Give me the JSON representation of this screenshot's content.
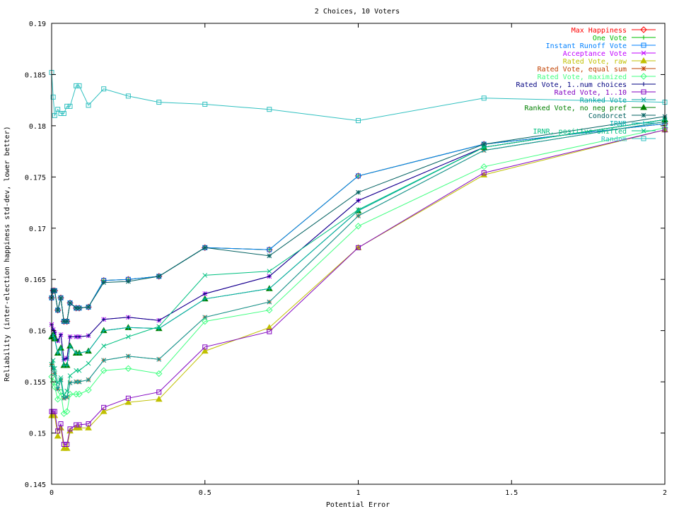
{
  "chart_data": {
    "type": "line",
    "title": "2 Choices, 10 Voters",
    "xlabel": "Potential Error",
    "ylabel": "Reliability (inter-election happiness std-dev, lower better)",
    "xlim": [
      0,
      2
    ],
    "ylim": [
      0.145,
      0.19
    ],
    "xticks": [
      0,
      0.5,
      1,
      1.5,
      2
    ],
    "xtick_labels": [
      "0",
      "0.5",
      "1",
      "1.5",
      "2"
    ],
    "yticks": [
      0.145,
      0.15,
      0.155,
      0.16,
      0.165,
      0.17,
      0.175,
      0.18,
      0.185,
      0.19
    ],
    "ytick_labels": [
      "0.145",
      "0.15",
      "0.155",
      "0.16",
      "0.165",
      "0.17",
      "0.175",
      "0.18",
      "0.185",
      "0.19"
    ],
    "grid": false,
    "legend_position": "top-right",
    "x": [
      0,
      0.005,
      0.01,
      0.02,
      0.03,
      0.04,
      0.05,
      0.06,
      0.08,
      0.09,
      0.12,
      0.17,
      0.25,
      0.35,
      0.5,
      0.71,
      1.0,
      1.41,
      2.0
    ],
    "series": [
      {
        "name": "Max Happiness",
        "color": "#ff0000",
        "marker": "diamond",
        "values": [
          0.1632,
          0.1639,
          0.1639,
          0.162,
          0.1632,
          0.1609,
          0.1609,
          0.1627,
          0.1622,
          0.1622,
          0.1623,
          0.1649,
          0.165,
          0.1653,
          0.1681,
          0.1679,
          0.1751,
          0.1782,
          0.1802
        ]
      },
      {
        "name": "One Vote",
        "color": "#00c000",
        "marker": "plus",
        "values": [
          0.1632,
          0.1639,
          0.1639,
          0.162,
          0.1632,
          0.1609,
          0.1609,
          0.1627,
          0.1622,
          0.1622,
          0.1623,
          0.1649,
          0.165,
          0.1653,
          0.1681,
          0.1679,
          0.1751,
          0.1782,
          0.1802
        ]
      },
      {
        "name": "Instant Runoff Vote",
        "color": "#0080ff",
        "marker": "square",
        "values": [
          0.1632,
          0.1639,
          0.1639,
          0.162,
          0.1632,
          0.1609,
          0.1609,
          0.1627,
          0.1622,
          0.1622,
          0.1623,
          0.1649,
          0.165,
          0.1653,
          0.1681,
          0.1679,
          0.1751,
          0.1782,
          0.1802
        ]
      },
      {
        "name": "Acceptance Vote",
        "color": "#c000ff",
        "marker": "x",
        "values": [
          0.1606,
          0.1601,
          0.1598,
          0.159,
          0.1596,
          0.1572,
          0.1573,
          0.1594,
          0.1594,
          0.1594,
          0.1595,
          0.1611,
          0.1613,
          0.161,
          0.1636,
          0.1653,
          0.1727,
          0.1779,
          0.1806
        ]
      },
      {
        "name": "Rated Vote, raw",
        "color": "#c0c000",
        "marker": "triangle",
        "values": [
          0.1517,
          0.1517,
          0.1517,
          0.1497,
          0.1505,
          0.1485,
          0.1485,
          0.1502,
          0.1505,
          0.1505,
          0.1505,
          0.1521,
          0.153,
          0.1533,
          0.158,
          0.1603,
          0.1681,
          0.1752,
          0.1796
        ]
      },
      {
        "name": "Rated Vote, equal sum",
        "color": "#c04000",
        "marker": "star",
        "values": [
          0.1567,
          0.1563,
          0.1558,
          0.1543,
          0.1552,
          0.1534,
          0.1535,
          0.1549,
          0.155,
          0.155,
          0.1552,
          0.1571,
          0.1575,
          0.1572,
          0.1613,
          0.1628,
          0.1712,
          0.1776,
          0.1804
        ]
      },
      {
        "name": "Rated Vote, maximized",
        "color": "#40ff80",
        "marker": "diamond",
        "values": [
          0.1555,
          0.155,
          0.1545,
          0.1533,
          0.154,
          0.1519,
          0.1521,
          0.1538,
          0.1538,
          0.1538,
          0.1542,
          0.1561,
          0.1563,
          0.1558,
          0.1609,
          0.162,
          0.1702,
          0.176,
          0.1798
        ]
      },
      {
        "name": "Rated Vote, 1..num choices",
        "color": "#000080",
        "marker": "plus",
        "values": [
          0.1606,
          0.1601,
          0.1598,
          0.159,
          0.1596,
          0.1572,
          0.1573,
          0.1594,
          0.1594,
          0.1594,
          0.1595,
          0.1611,
          0.1613,
          0.161,
          0.1636,
          0.1653,
          0.1727,
          0.1779,
          0.1806
        ]
      },
      {
        "name": "Rated Vote, 1..10",
        "color": "#8000c0",
        "marker": "square",
        "values": [
          0.1521,
          0.1521,
          0.1521,
          0.1502,
          0.1509,
          0.1489,
          0.1489,
          0.1504,
          0.1508,
          0.1508,
          0.1509,
          0.1525,
          0.1534,
          0.154,
          0.1584,
          0.1599,
          0.1681,
          0.1754,
          0.1796
        ]
      },
      {
        "name": "Ranked Vote",
        "color": "#00a0a0",
        "marker": "x",
        "values": [
          0.1567,
          0.1563,
          0.1558,
          0.1543,
          0.1552,
          0.1534,
          0.1535,
          0.1549,
          0.155,
          0.155,
          0.1552,
          0.1571,
          0.1575,
          0.1572,
          0.1613,
          0.1628,
          0.1712,
          0.1776,
          0.1804
        ]
      },
      {
        "name": "Ranked Vote, no neg pref",
        "color": "#008000",
        "marker": "triangle",
        "values": [
          0.1594,
          0.1596,
          0.1592,
          0.1578,
          0.1583,
          0.1566,
          0.1566,
          0.1585,
          0.1578,
          0.1578,
          0.158,
          0.16,
          0.1603,
          0.1602,
          0.1631,
          0.1641,
          0.1717,
          0.1779,
          0.1806
        ]
      },
      {
        "name": "Condorcet",
        "color": "#006060",
        "marker": "star",
        "values": [
          0.1632,
          0.1639,
          0.1639,
          0.162,
          0.1632,
          0.1609,
          0.1609,
          0.1627,
          0.1622,
          0.1622,
          0.1623,
          0.1647,
          0.1648,
          0.1653,
          0.1681,
          0.1673,
          0.1735,
          0.1782,
          0.1809
        ]
      },
      {
        "name": "IRNR",
        "color": "#00b0b0",
        "marker": "plus",
        "values": [
          0.1594,
          0.1596,
          0.1592,
          0.1578,
          0.1583,
          0.1566,
          0.1566,
          0.1585,
          0.1578,
          0.1578,
          0.158,
          0.16,
          0.1603,
          0.1602,
          0.1631,
          0.1641,
          0.1717,
          0.1779,
          0.1806
        ]
      },
      {
        "name": "IRNR, positive shifted",
        "color": "#00c080",
        "marker": "x",
        "values": [
          0.1567,
          0.1571,
          0.1563,
          0.1549,
          0.1554,
          0.1537,
          0.1541,
          0.1556,
          0.1561,
          0.1561,
          0.1568,
          0.1585,
          0.1594,
          0.1604,
          0.1654,
          0.1658,
          0.1718,
          0.1779,
          0.1806
        ]
      },
      {
        "name": "Random",
        "color": "#30c0c0",
        "marker": "square",
        "values": [
          0.1852,
          0.1828,
          0.181,
          0.1816,
          0.1812,
          0.1812,
          0.1819,
          0.1819,
          0.1839,
          0.1839,
          0.182,
          0.1836,
          0.1829,
          0.1823,
          0.1821,
          0.1816,
          0.1805,
          0.1827,
          0.1823
        ]
      }
    ]
  }
}
